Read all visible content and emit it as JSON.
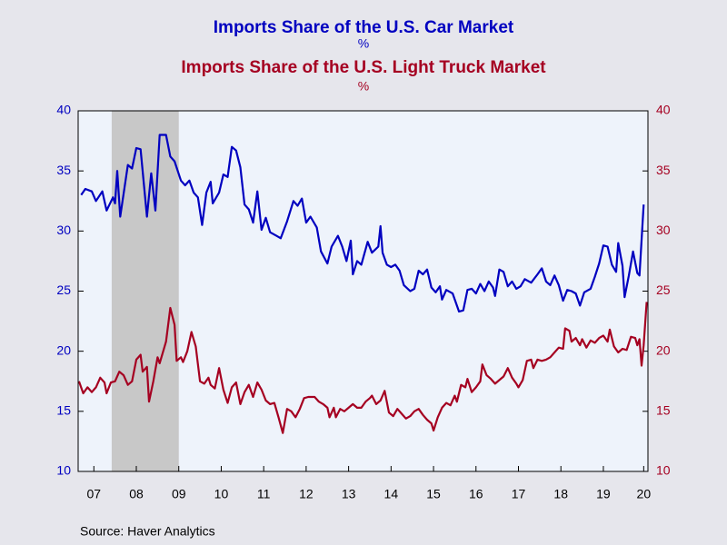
{
  "chart_data": {
    "type": "line",
    "source": "Source:  Haver Analytics",
    "xlim": [
      2007.13,
      2020.55
    ],
    "xticks": [
      {
        "value": 2007.5,
        "label": "07"
      },
      {
        "value": 2008.5,
        "label": "08"
      },
      {
        "value": 2009.5,
        "label": "09"
      },
      {
        "value": 2010.5,
        "label": "10"
      },
      {
        "value": 2011.5,
        "label": "11"
      },
      {
        "value": 2012.5,
        "label": "12"
      },
      {
        "value": 2013.5,
        "label": "13"
      },
      {
        "value": 2014.5,
        "label": "14"
      },
      {
        "value": 2015.5,
        "label": "15"
      },
      {
        "value": 2016.5,
        "label": "16"
      },
      {
        "value": 2017.5,
        "label": "17"
      },
      {
        "value": 2018.5,
        "label": "18"
      },
      {
        "value": 2019.5,
        "label": "19"
      },
      {
        "value": 2020.45,
        "label": "20"
      }
    ],
    "ylim": [
      10,
      40
    ],
    "yticks": [
      10,
      15,
      20,
      25,
      30,
      35,
      40
    ],
    "y2lim": [
      10,
      40
    ],
    "y2ticks": [
      10,
      15,
      20,
      25,
      30,
      35,
      40
    ],
    "recession": [
      2007.92,
      2009.5
    ],
    "series": [
      {
        "name": "Imports Share of the U.S. Car Market",
        "unit": "%",
        "color": "#0000c0",
        "x": [
          2007.2,
          2007.3,
          2007.45,
          2007.55,
          2007.7,
          2007.8,
          2007.95,
          2008.0,
          2008.05,
          2008.12,
          2008.3,
          2008.4,
          2008.5,
          2008.6,
          2008.75,
          2008.85,
          2008.95,
          2009.05,
          2009.2,
          2009.3,
          2009.4,
          2009.55,
          2009.65,
          2009.75,
          2009.85,
          2009.95,
          2010.05,
          2010.15,
          2010.25,
          2010.3,
          2010.45,
          2010.55,
          2010.65,
          2010.75,
          2010.85,
          2010.95,
          2011.05,
          2011.15,
          2011.25,
          2011.35,
          2011.45,
          2011.55,
          2011.65,
          2011.8,
          2011.9,
          2012.05,
          2012.2,
          2012.3,
          2012.4,
          2012.5,
          2012.6,
          2012.75,
          2012.85,
          2013.0,
          2013.1,
          2013.25,
          2013.35,
          2013.45,
          2013.55,
          2013.6,
          2013.7,
          2013.8,
          2013.95,
          2014.05,
          2014.2,
          2014.25,
          2014.3,
          2014.4,
          2014.5,
          2014.6,
          2014.7,
          2014.8,
          2014.95,
          2015.05,
          2015.15,
          2015.25,
          2015.35,
          2015.45,
          2015.55,
          2015.65,
          2015.7,
          2015.8,
          2015.95,
          2016.1,
          2016.2,
          2016.3,
          2016.4,
          2016.5,
          2016.6,
          2016.7,
          2016.8,
          2016.9,
          2016.95,
          2017.05,
          2017.15,
          2017.25,
          2017.35,
          2017.45,
          2017.55,
          2017.65,
          2017.8,
          2017.95,
          2018.05,
          2018.15,
          2018.25,
          2018.35,
          2018.45,
          2018.55,
          2018.65,
          2018.75,
          2018.85,
          2018.95,
          2019.05,
          2019.2,
          2019.3,
          2019.4,
          2019.5,
          2019.6,
          2019.7,
          2019.8,
          2019.85,
          2019.95,
          2020.0,
          2020.1,
          2020.2,
          2020.3,
          2020.35,
          2020.45
        ],
        "values": [
          33,
          33.5,
          33.3,
          32.5,
          33.3,
          31.7,
          32.8,
          32.3,
          35.0,
          31.2,
          35.5,
          35.2,
          36.9,
          36.8,
          31.2,
          34.8,
          31.7,
          38,
          38,
          36.2,
          35.8,
          34.2,
          33.8,
          34.2,
          33.2,
          32.8,
          30.5,
          33.2,
          34.1,
          32.3,
          33.2,
          34.7,
          34.5,
          37.0,
          36.7,
          35.3,
          32.2,
          31.8,
          30.7,
          33.3,
          30.1,
          31.1,
          29.9,
          29.6,
          29.4,
          30.8,
          32.5,
          32.1,
          32.7,
          30.7,
          31.2,
          30.3,
          28.3,
          27.3,
          28.7,
          29.6,
          28.7,
          27.5,
          29.2,
          26.4,
          27.5,
          27.2,
          29.1,
          28.2,
          28.7,
          30.4,
          28.2,
          27.2,
          27.0,
          27.2,
          26.7,
          25.5,
          25.0,
          25.2,
          26.7,
          26.4,
          26.8,
          25.3,
          24.9,
          25.4,
          24.3,
          25.1,
          24.8,
          23.3,
          23.4,
          25.1,
          25.2,
          24.8,
          25.6,
          25.0,
          25.8,
          25.3,
          24.6,
          26.8,
          26.6,
          25.4,
          25.8,
          25.2,
          25.4,
          26.0,
          25.7,
          26.4,
          26.9,
          25.8,
          25.5,
          26.3,
          25.5,
          24.2,
          25.1,
          25.0,
          24.8,
          23.8,
          24.9,
          25.2,
          26.2,
          27.3,
          28.8,
          28.7,
          27.2,
          26.6,
          29.0,
          27.1,
          24.5,
          26.3,
          28.3,
          26.5,
          26.3,
          32.2
        ]
      },
      {
        "name": "Imports Share of the U.S. Light Truck Market",
        "unit": "%",
        "color": "#a50021",
        "axis": "y2",
        "x": [
          2007.15,
          2007.25,
          2007.35,
          2007.45,
          2007.55,
          2007.65,
          2007.75,
          2007.8,
          2007.9,
          2008.0,
          2008.1,
          2008.2,
          2008.3,
          2008.4,
          2008.5,
          2008.6,
          2008.65,
          2008.75,
          2008.8,
          2008.9,
          2009.0,
          2009.05,
          2009.2,
          2009.3,
          2009.4,
          2009.45,
          2009.55,
          2009.6,
          2009.7,
          2009.8,
          2009.9,
          2010.0,
          2010.1,
          2010.2,
          2010.25,
          2010.35,
          2010.45,
          2010.55,
          2010.65,
          2010.75,
          2010.85,
          2010.95,
          2011.05,
          2011.15,
          2011.25,
          2011.35,
          2011.45,
          2011.55,
          2011.65,
          2011.75,
          2011.85,
          2011.95,
          2012.05,
          2012.15,
          2012.25,
          2012.35,
          2012.45,
          2012.55,
          2012.7,
          2012.8,
          2012.9,
          2013.0,
          2013.05,
          2013.15,
          2013.2,
          2013.3,
          2013.4,
          2013.5,
          2013.6,
          2013.7,
          2013.8,
          2013.9,
          2014.0,
          2014.05,
          2014.15,
          2014.25,
          2014.35,
          2014.45,
          2014.55,
          2014.65,
          2014.75,
          2014.85,
          2014.95,
          2015.05,
          2015.15,
          2015.25,
          2015.35,
          2015.45,
          2015.5,
          2015.6,
          2015.7,
          2015.8,
          2015.9,
          2016.0,
          2016.05,
          2016.15,
          2016.25,
          2016.3,
          2016.4,
          2016.5,
          2016.6,
          2016.65,
          2016.75,
          2016.85,
          2016.95,
          2017.05,
          2017.15,
          2017.25,
          2017.35,
          2017.45,
          2017.5,
          2017.6,
          2017.7,
          2017.8,
          2017.85,
          2017.95,
          2018.05,
          2018.15,
          2018.25,
          2018.35,
          2018.45,
          2018.55,
          2018.6,
          2018.7,
          2018.75,
          2018.85,
          2018.95,
          2019.0,
          2019.1,
          2019.2,
          2019.3,
          2019.4,
          2019.5,
          2019.6,
          2019.65,
          2019.75,
          2019.85,
          2019.95,
          2020.05,
          2020.15,
          2020.25,
          2020.3,
          2020.35,
          2020.4,
          2020.45,
          2020.52
        ],
        "values": [
          17.5,
          16.5,
          17.0,
          16.6,
          17.0,
          17.8,
          17.4,
          16.5,
          17.4,
          17.5,
          18.3,
          18.0,
          17.2,
          17.5,
          19.3,
          19.7,
          18.3,
          18.7,
          15.8,
          17.5,
          19.5,
          19.0,
          20.8,
          23.6,
          22.2,
          19.2,
          19.5,
          19.1,
          20.0,
          21.6,
          20.4,
          17.5,
          17.3,
          17.8,
          17.2,
          16.9,
          18.6,
          16.8,
          15.7,
          17.0,
          17.4,
          15.6,
          16.6,
          17.2,
          16.2,
          17.4,
          16.8,
          15.9,
          15.6,
          15.7,
          14.5,
          13.2,
          15.2,
          15.0,
          14.5,
          15.2,
          16.1,
          16.2,
          16.2,
          15.8,
          15.6,
          15.3,
          14.5,
          15.3,
          14.5,
          15.2,
          15.0,
          15.3,
          15.6,
          15.3,
          15.3,
          15.8,
          16.1,
          16.3,
          15.6,
          15.9,
          16.7,
          14.9,
          14.6,
          15.2,
          14.8,
          14.4,
          14.6,
          15.0,
          15.2,
          14.7,
          14.3,
          14.0,
          13.4,
          14.5,
          15.3,
          15.7,
          15.5,
          16.3,
          15.8,
          17.2,
          17.0,
          17.7,
          16.6,
          17.0,
          17.5,
          18.9,
          18.0,
          17.7,
          17.3,
          17.6,
          17.9,
          18.6,
          17.8,
          17.3,
          17.0,
          17.6,
          19.2,
          19.3,
          18.6,
          19.3,
          19.2,
          19.3,
          19.5,
          19.9,
          20.3,
          20.2,
          21.9,
          21.7,
          20.8,
          21.1,
          20.5,
          21.0,
          20.3,
          20.9,
          20.7,
          21.1,
          21.3,
          20.8,
          21.8,
          20.4,
          19.9,
          20.2,
          20.1,
          21.2,
          21.1,
          20.5,
          21.0,
          18.8,
          20.5,
          24.1
        ]
      }
    ]
  }
}
